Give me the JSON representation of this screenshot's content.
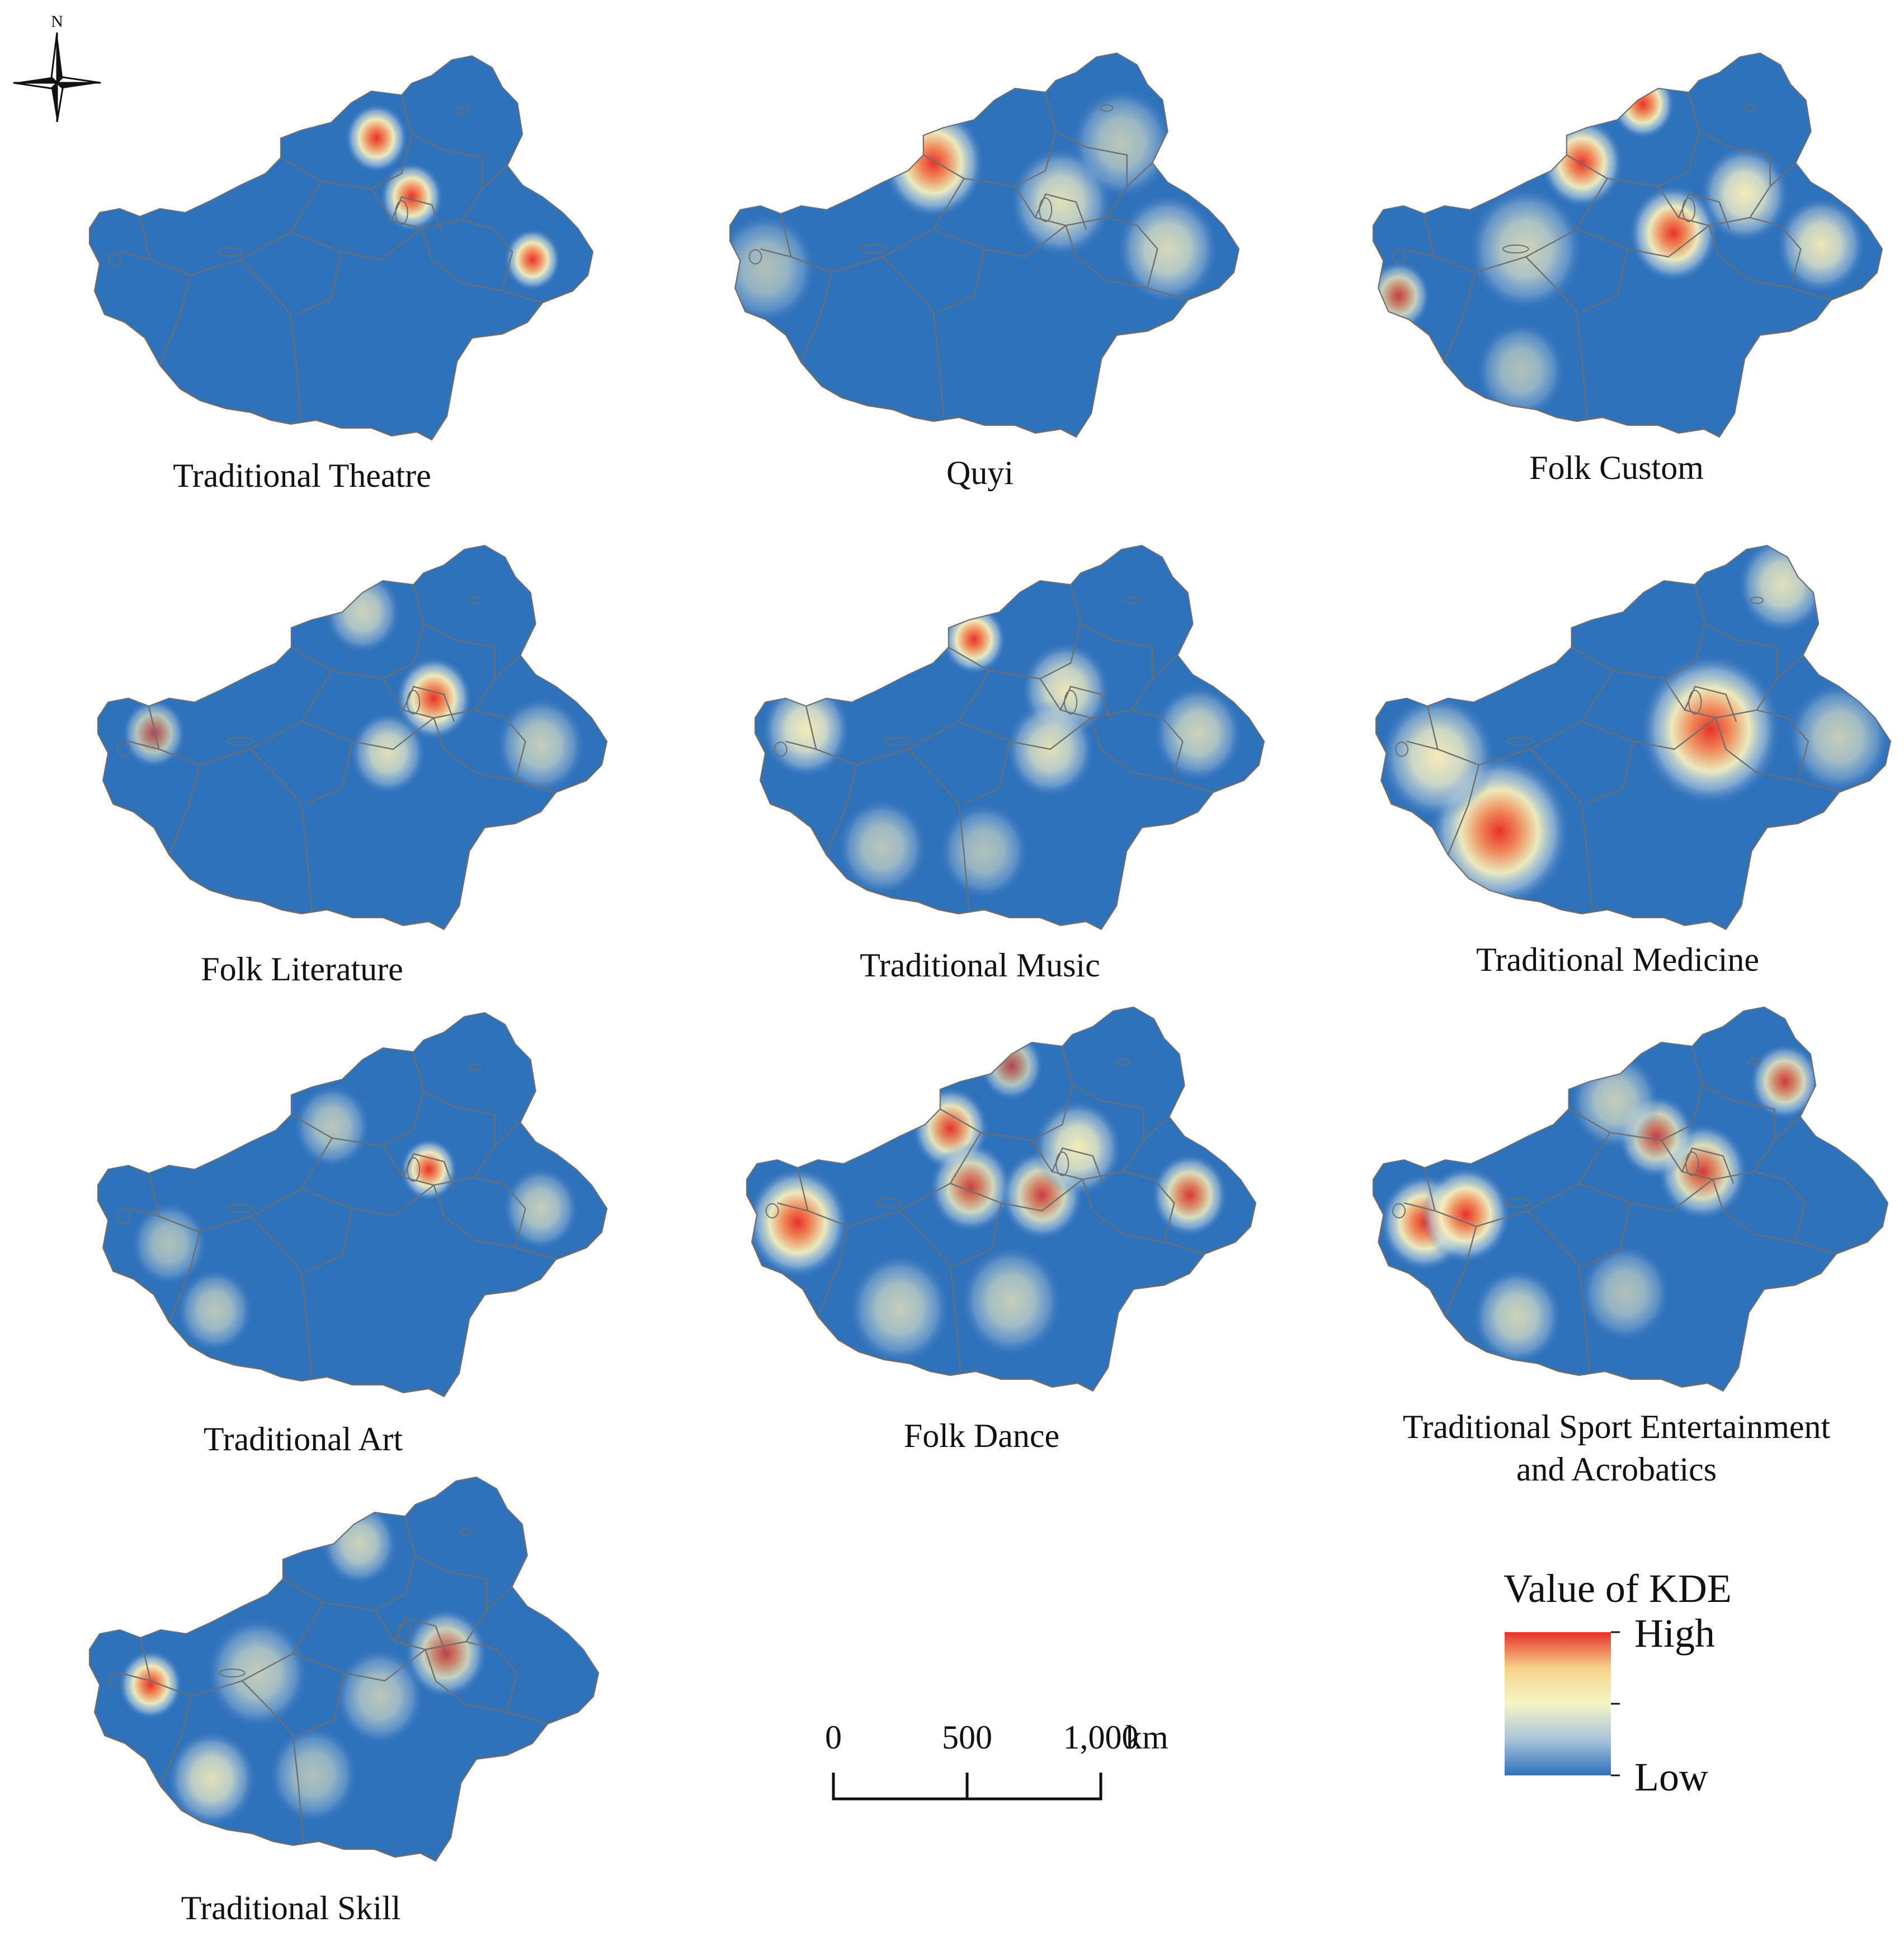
{
  "compass": {
    "north_label": "N"
  },
  "panels": [
    {
      "title": "Traditional Theatre",
      "hotspots": [
        {
          "u": 0.57,
          "v": 0.21,
          "s": 0.05,
          "w": 1.0
        },
        {
          "u": 0.64,
          "v": 0.36,
          "s": 0.05,
          "w": 1.0
        },
        {
          "u": 0.88,
          "v": 0.52,
          "s": 0.045,
          "w": 1.0
        }
      ]
    },
    {
      "title": "Quyi",
      "hotspots": [
        {
          "u": 0.4,
          "v": 0.28,
          "s": 0.08,
          "w": 1.0
        },
        {
          "u": 0.65,
          "v": 0.38,
          "s": 0.08,
          "w": 0.45
        },
        {
          "u": 0.86,
          "v": 0.5,
          "s": 0.08,
          "w": 0.4
        },
        {
          "u": 0.77,
          "v": 0.23,
          "s": 0.08,
          "w": 0.25
        },
        {
          "u": 0.07,
          "v": 0.55,
          "s": 0.08,
          "w": 0.2
        }
      ]
    },
    {
      "title": "Folk Custom",
      "hotspots": [
        {
          "u": 0.53,
          "v": 0.13,
          "s": 0.05,
          "w": 1.0
        },
        {
          "u": 0.41,
          "v": 0.28,
          "s": 0.065,
          "w": 1.0
        },
        {
          "u": 0.59,
          "v": 0.46,
          "s": 0.07,
          "w": 1.0
        },
        {
          "u": 0.05,
          "v": 0.62,
          "s": 0.05,
          "w": 0.8
        },
        {
          "u": 0.73,
          "v": 0.36,
          "s": 0.07,
          "w": 0.6
        },
        {
          "u": 0.88,
          "v": 0.49,
          "s": 0.07,
          "w": 0.5
        },
        {
          "u": 0.3,
          "v": 0.5,
          "s": 0.09,
          "w": 0.35
        },
        {
          "u": 0.29,
          "v": 0.81,
          "s": 0.07,
          "w": 0.2
        }
      ]
    },
    {
      "title": "Folk Literature",
      "hotspots": [
        {
          "u": 0.66,
          "v": 0.39,
          "s": 0.06,
          "w": 1.0
        },
        {
          "u": 0.11,
          "v": 0.48,
          "s": 0.05,
          "w": 0.7
        },
        {
          "u": 0.57,
          "v": 0.53,
          "s": 0.06,
          "w": 0.45
        },
        {
          "u": 0.52,
          "v": 0.17,
          "s": 0.06,
          "w": 0.35
        },
        {
          "u": 0.87,
          "v": 0.51,
          "s": 0.07,
          "w": 0.3
        }
      ]
    },
    {
      "title": "Traditional Music",
      "hotspots": [
        {
          "u": 0.43,
          "v": 0.24,
          "s": 0.05,
          "w": 1.0
        },
        {
          "u": 0.1,
          "v": 0.47,
          "s": 0.07,
          "w": 0.55
        },
        {
          "u": 0.61,
          "v": 0.37,
          "s": 0.07,
          "w": 0.5
        },
        {
          "u": 0.58,
          "v": 0.52,
          "s": 0.07,
          "w": 0.45
        },
        {
          "u": 0.87,
          "v": 0.48,
          "s": 0.07,
          "w": 0.35
        },
        {
          "u": 0.25,
          "v": 0.77,
          "s": 0.07,
          "w": 0.25
        },
        {
          "u": 0.45,
          "v": 0.78,
          "s": 0.07,
          "w": 0.2
        }
      ]
    },
    {
      "title": "Traditional Medicine",
      "hotspots": [
        {
          "u": 0.65,
          "v": 0.47,
          "s": 0.11,
          "w": 1.0
        },
        {
          "u": 0.24,
          "v": 0.73,
          "s": 0.11,
          "w": 1.0
        },
        {
          "u": 0.12,
          "v": 0.54,
          "s": 0.09,
          "w": 0.55
        },
        {
          "u": 0.79,
          "v": 0.1,
          "s": 0.07,
          "w": 0.45
        },
        {
          "u": 0.9,
          "v": 0.49,
          "s": 0.08,
          "w": 0.3
        }
      ]
    },
    {
      "title": "Traditional Art",
      "hotspots": [
        {
          "u": 0.65,
          "v": 0.4,
          "s": 0.045,
          "w": 1.0
        },
        {
          "u": 0.87,
          "v": 0.5,
          "s": 0.06,
          "w": 0.3
        },
        {
          "u": 0.23,
          "v": 0.76,
          "s": 0.06,
          "w": 0.25
        },
        {
          "u": 0.46,
          "v": 0.29,
          "s": 0.06,
          "w": 0.25
        },
        {
          "u": 0.14,
          "v": 0.59,
          "s": 0.06,
          "w": 0.2
        }
      ]
    },
    {
      "title": "Folk Dance",
      "hotspots": [
        {
          "u": 0.1,
          "v": 0.55,
          "s": 0.08,
          "w": 1.0
        },
        {
          "u": 0.4,
          "v": 0.31,
          "s": 0.06,
          "w": 0.95
        },
        {
          "u": 0.44,
          "v": 0.46,
          "s": 0.065,
          "w": 0.85
        },
        {
          "u": 0.58,
          "v": 0.48,
          "s": 0.065,
          "w": 0.85
        },
        {
          "u": 0.87,
          "v": 0.48,
          "s": 0.06,
          "w": 0.9
        },
        {
          "u": 0.52,
          "v": 0.15,
          "s": 0.05,
          "w": 0.7
        },
        {
          "u": 0.65,
          "v": 0.36,
          "s": 0.07,
          "w": 0.55
        },
        {
          "u": 0.3,
          "v": 0.77,
          "s": 0.08,
          "w": 0.3
        },
        {
          "u": 0.52,
          "v": 0.75,
          "s": 0.08,
          "w": 0.3
        }
      ]
    },
    {
      "title": "Traditional Sport Entertainment and Acrobatics",
      "hotspots": [
        {
          "u": 0.1,
          "v": 0.55,
          "s": 0.07,
          "w": 1.0
        },
        {
          "u": 0.18,
          "v": 0.53,
          "s": 0.07,
          "w": 1.0
        },
        {
          "u": 0.64,
          "v": 0.42,
          "s": 0.07,
          "w": 0.9
        },
        {
          "u": 0.55,
          "v": 0.33,
          "s": 0.06,
          "w": 0.8
        },
        {
          "u": 0.8,
          "v": 0.19,
          "s": 0.055,
          "w": 0.85
        },
        {
          "u": 0.28,
          "v": 0.79,
          "s": 0.07,
          "w": 0.35
        },
        {
          "u": 0.47,
          "v": 0.24,
          "s": 0.07,
          "w": 0.3
        },
        {
          "u": 0.49,
          "v": 0.73,
          "s": 0.07,
          "w": 0.2
        }
      ]
    },
    {
      "title": "Traditional Skill",
      "hotspots": [
        {
          "u": 0.12,
          "v": 0.53,
          "s": 0.05,
          "w": 1.0
        },
        {
          "u": 0.7,
          "v": 0.45,
          "s": 0.065,
          "w": 0.8
        },
        {
          "u": 0.24,
          "v": 0.77,
          "s": 0.07,
          "w": 0.45
        },
        {
          "u": 0.53,
          "v": 0.17,
          "s": 0.06,
          "w": 0.35
        },
        {
          "u": 0.33,
          "v": 0.5,
          "s": 0.08,
          "w": 0.3
        },
        {
          "u": 0.57,
          "v": 0.56,
          "s": 0.07,
          "w": 0.25
        },
        {
          "u": 0.44,
          "v": 0.76,
          "s": 0.07,
          "w": 0.2
        }
      ]
    }
  ],
  "scale_bar": {
    "ticks": [
      "0",
      "500",
      "1,000"
    ],
    "unit": "km"
  },
  "legend": {
    "title": "Value of KDE",
    "high_label": "High",
    "low_label": "Low",
    "colors": [
      "#e8312a",
      "#f6d28a",
      "#f5f5c4",
      "#a9c3da",
      "#2f72bc"
    ]
  },
  "map_colors": {
    "base": "#2f72bc",
    "boundary": "#6e6e6e",
    "lake": "#2f72bc"
  }
}
